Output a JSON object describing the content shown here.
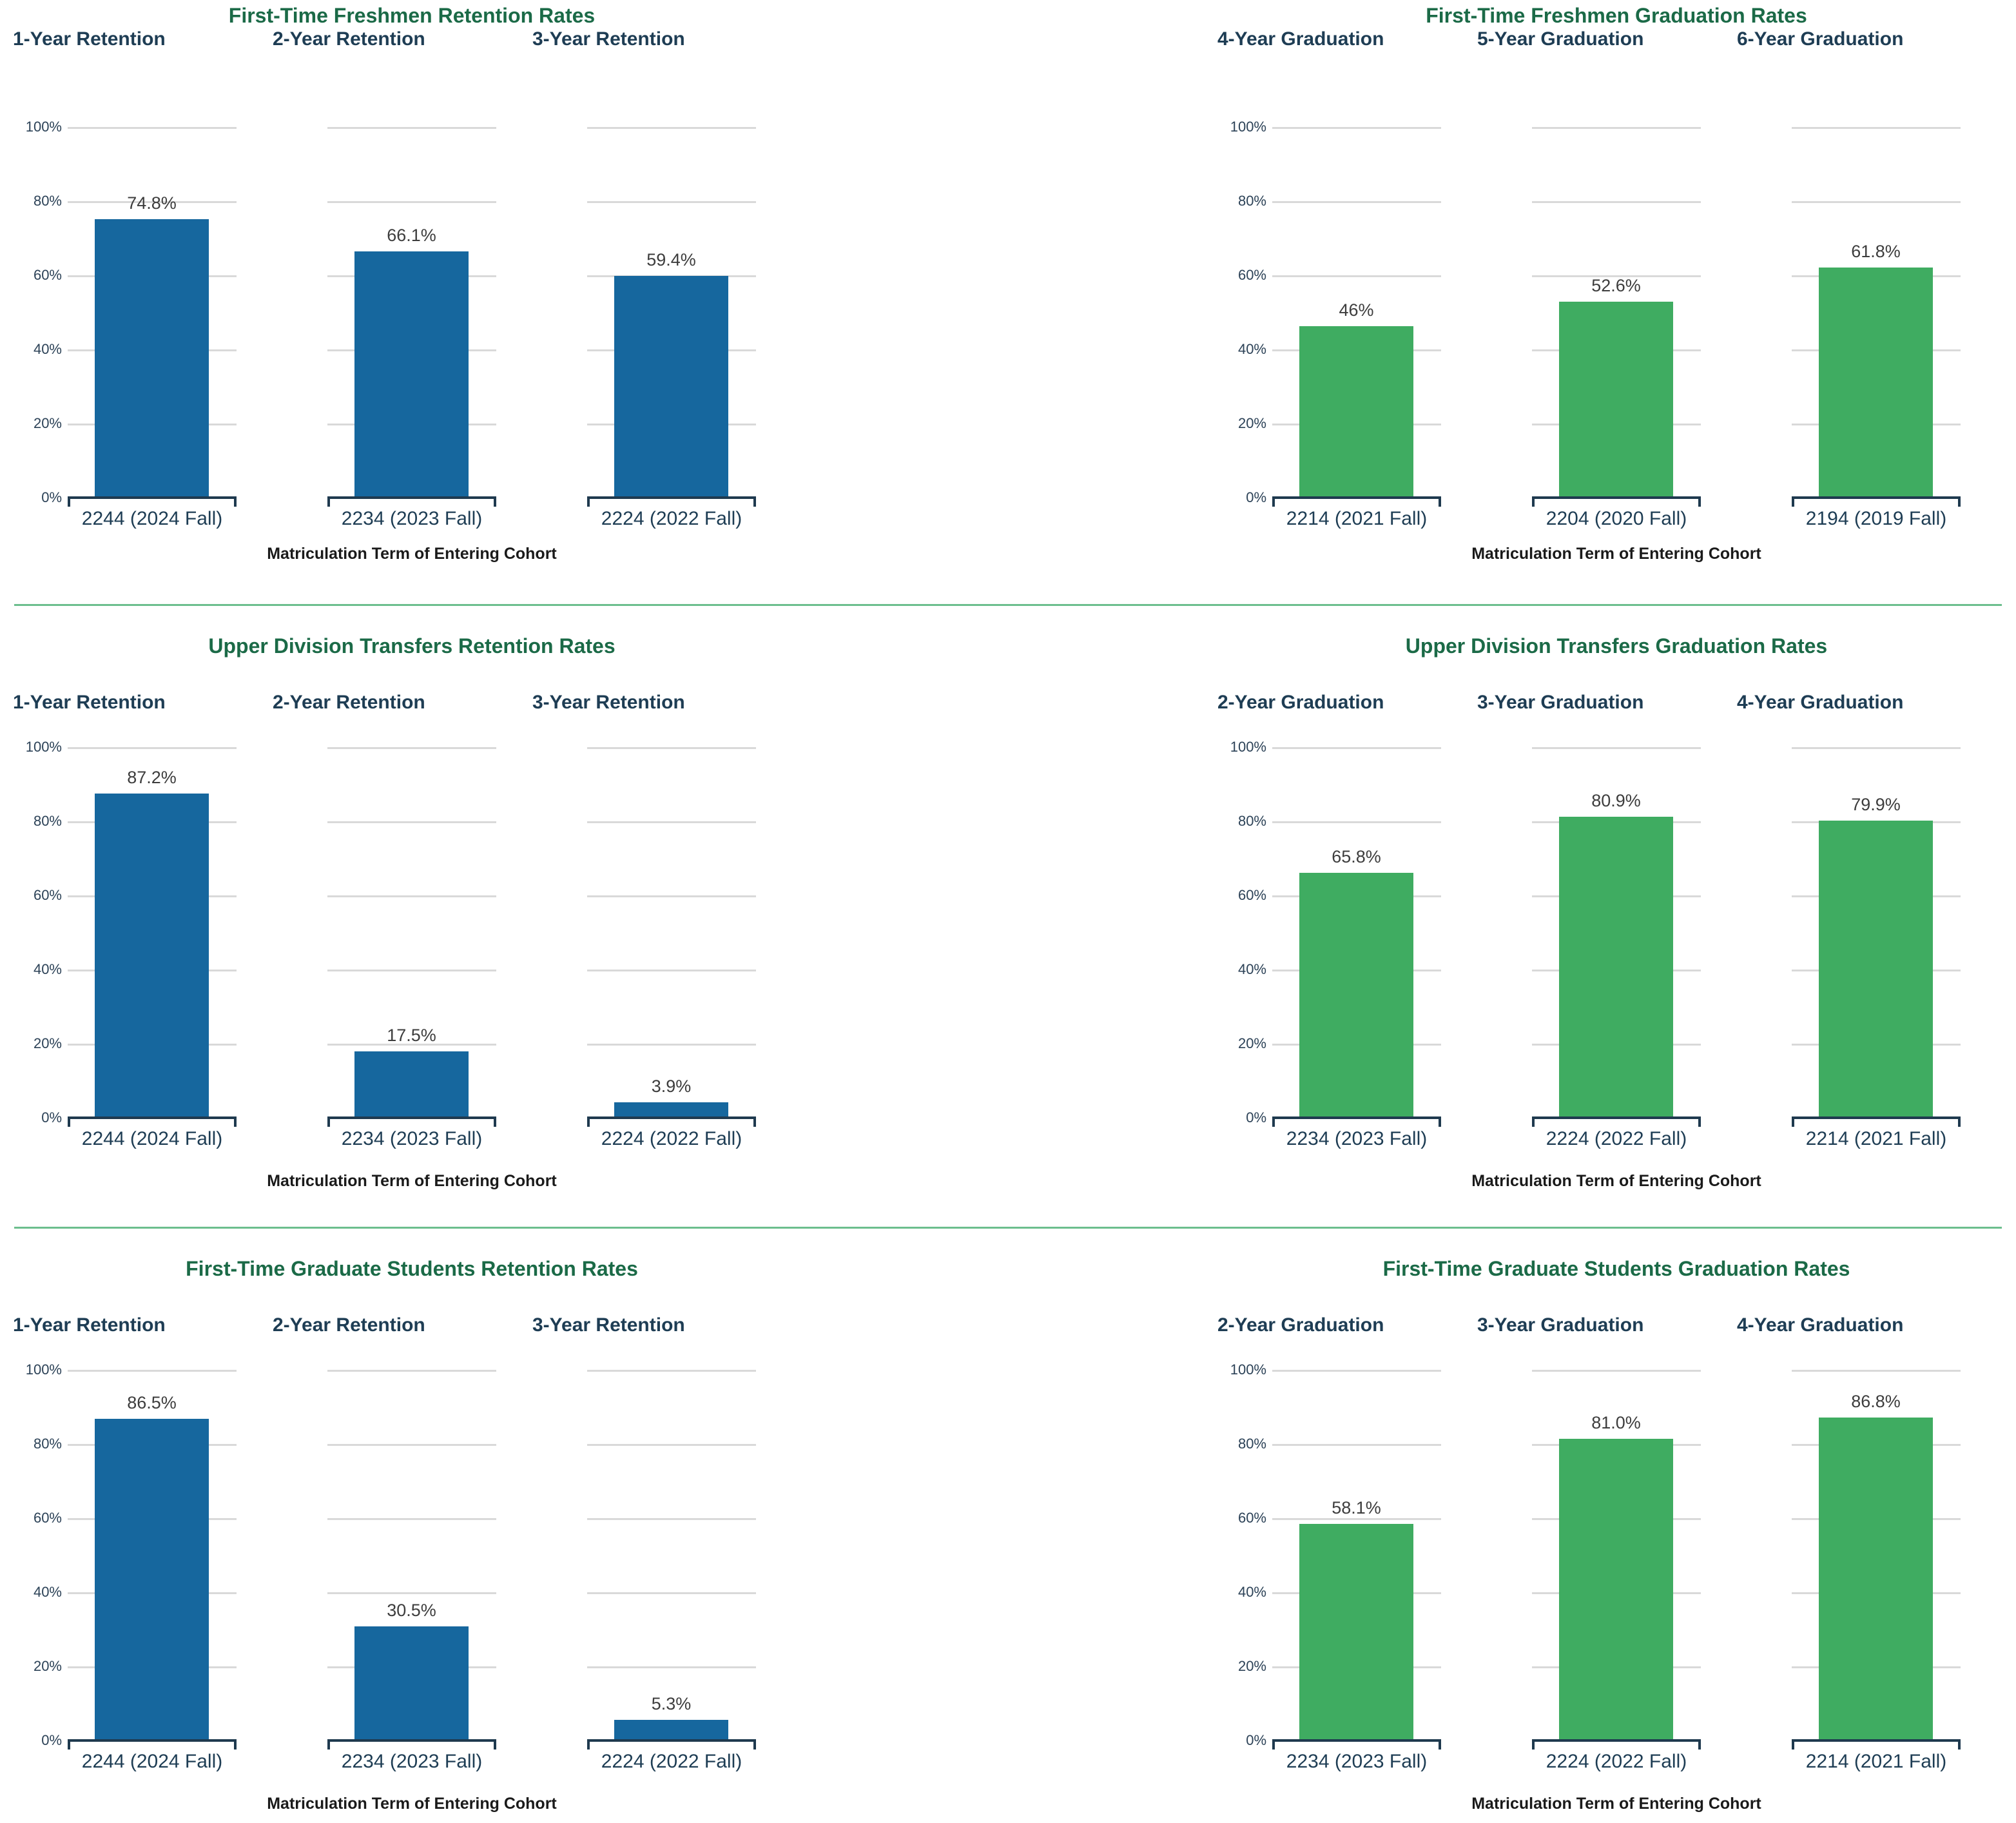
{
  "colors": {
    "retention_bar": "#16679E",
    "graduation_bar": "#3FAC61",
    "panel_title_green": "#1B6A47",
    "subtitle_navy": "#1E3D54",
    "value_label_gray": "#3D3D3D",
    "gridline_gray": "#D9D9D9",
    "axis_line_navy": "#1F3A4F",
    "section_divider_green": "#6CBE8E"
  },
  "chart_data": [
    {
      "type": "bar",
      "title": "First-Time Freshmen Retention Rates",
      "xlabel": "Matriculation Term of Entering Cohort",
      "ylabel": "",
      "ylim": [
        0,
        100
      ],
      "y_ticks": [
        "100%",
        "80%",
        "60%",
        "40%",
        "20%",
        "0%"
      ],
      "grid": true,
      "legend": "none",
      "bar_color": "#16679E",
      "columns": [
        {
          "subtitle": "1-Year Retention",
          "category": "2244 (2024 Fall)",
          "value": 74.8,
          "label": "74.8%"
        },
        {
          "subtitle": "2-Year Retention",
          "category": "2234 (2023 Fall)",
          "value": 66.1,
          "label": "66.1%"
        },
        {
          "subtitle": "3-Year Retention",
          "category": "2224 (2022 Fall)",
          "value": 59.4,
          "label": "59.4%"
        }
      ]
    },
    {
      "type": "bar",
      "title": "First-Time Freshmen Graduation Rates",
      "xlabel": "Matriculation Term of Entering Cohort",
      "ylabel": "",
      "ylim": [
        0,
        100
      ],
      "y_ticks": [
        "100%",
        "80%",
        "60%",
        "40%",
        "20%",
        "0%"
      ],
      "grid": true,
      "legend": "none",
      "bar_color": "#3FAC61",
      "columns": [
        {
          "subtitle": "4-Year Graduation",
          "category": "2214 (2021 Fall)",
          "value": 46,
          "label": "46%"
        },
        {
          "subtitle": "5-Year Graduation",
          "category": "2204 (2020 Fall)",
          "value": 52.6,
          "label": "52.6%"
        },
        {
          "subtitle": "6-Year Graduation",
          "category": "2194 (2019 Fall)",
          "value": 61.8,
          "label": "61.8%"
        }
      ]
    },
    {
      "type": "bar",
      "title": "Upper Division Transfers Retention Rates",
      "xlabel": "Matriculation Term of Entering Cohort",
      "ylabel": "",
      "ylim": [
        0,
        100
      ],
      "y_ticks": [
        "100%",
        "80%",
        "60%",
        "40%",
        "20%",
        "0%"
      ],
      "grid": true,
      "legend": "none",
      "bar_color": "#16679E",
      "columns": [
        {
          "subtitle": "1-Year Retention",
          "category": "2244 (2024 Fall)",
          "value": 87.2,
          "label": "87.2%"
        },
        {
          "subtitle": "2-Year Retention",
          "category": "2234 (2023 Fall)",
          "value": 17.5,
          "label": "17.5%"
        },
        {
          "subtitle": "3-Year Retention",
          "category": "2224 (2022 Fall)",
          "value": 3.9,
          "label": "3.9%"
        }
      ]
    },
    {
      "type": "bar",
      "title": "Upper Division Transfers Graduation Rates",
      "xlabel": "Matriculation Term of Entering Cohort",
      "ylabel": "",
      "ylim": [
        0,
        100
      ],
      "y_ticks": [
        "100%",
        "80%",
        "60%",
        "40%",
        "20%",
        "0%"
      ],
      "grid": true,
      "legend": "none",
      "bar_color": "#3FAC61",
      "columns": [
        {
          "subtitle": "2-Year Graduation",
          "category": "2234 (2023 Fall)",
          "value": 65.8,
          "label": "65.8%"
        },
        {
          "subtitle": "3-Year Graduation",
          "category": "2224 (2022 Fall)",
          "value": 80.9,
          "label": "80.9%"
        },
        {
          "subtitle": "4-Year Graduation",
          "category": "2214 (2021 Fall)",
          "value": 79.9,
          "label": "79.9%"
        }
      ]
    },
    {
      "type": "bar",
      "title": "First-Time Graduate Students Retention Rates",
      "xlabel": "Matriculation Term of Entering Cohort",
      "ylabel": "",
      "ylim": [
        0,
        100
      ],
      "y_ticks": [
        "100%",
        "80%",
        "60%",
        "40%",
        "20%",
        "0%"
      ],
      "grid": true,
      "legend": "none",
      "bar_color": "#16679E",
      "columns": [
        {
          "subtitle": "1-Year Retention",
          "category": "2244 (2024 Fall)",
          "value": 86.5,
          "label": "86.5%"
        },
        {
          "subtitle": "2-Year Retention",
          "category": "2234 (2023 Fall)",
          "value": 30.5,
          "label": "30.5%"
        },
        {
          "subtitle": "3-Year Retention",
          "category": "2224 (2022 Fall)",
          "value": 5.3,
          "label": "5.3%"
        }
      ]
    },
    {
      "type": "bar",
      "title": "First-Time Graduate Students Graduation Rates",
      "xlabel": "Matriculation Term of Entering Cohort",
      "ylabel": "",
      "ylim": [
        0,
        100
      ],
      "y_ticks": [
        "100%",
        "80%",
        "60%",
        "40%",
        "20%",
        "0%"
      ],
      "grid": true,
      "legend": "none",
      "bar_color": "#3FAC61",
      "columns": [
        {
          "subtitle": "2-Year Graduation",
          "category": "2234 (2023 Fall)",
          "value": 58.1,
          "label": "58.1%"
        },
        {
          "subtitle": "3-Year Graduation",
          "category": "2224 (2022 Fall)",
          "value": 81.0,
          "label": "81.0%"
        },
        {
          "subtitle": "4-Year Graduation",
          "category": "2214 (2021 Fall)",
          "value": 86.8,
          "label": "86.8%"
        }
      ]
    }
  ]
}
